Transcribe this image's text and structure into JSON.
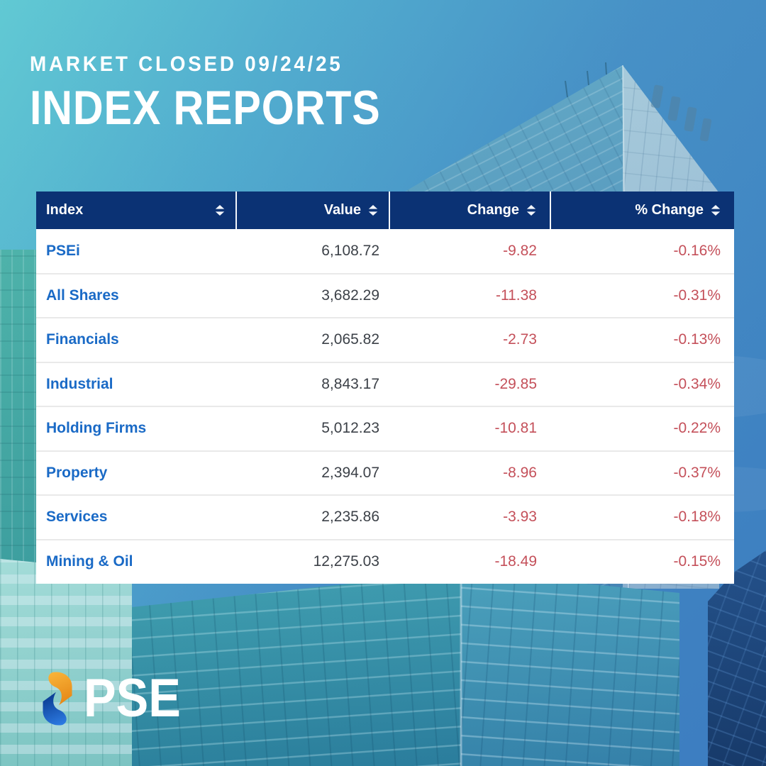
{
  "poster": {
    "status_line": "MARKET CLOSED 09/24/25",
    "title": "INDEX REPORTS"
  },
  "logo": {
    "text": "PSE",
    "mark_top_color": "#F3A52C",
    "mark_bottom_color": "#1D63C8"
  },
  "table": {
    "columns": [
      {
        "label": "Index",
        "sortable": true,
        "align": "left"
      },
      {
        "label": "Value",
        "sortable": true,
        "align": "right"
      },
      {
        "label": "Change",
        "sortable": true,
        "align": "right"
      },
      {
        "label": "% Change",
        "sortable": true,
        "align": "right"
      }
    ],
    "rows": [
      {
        "index": "PSEi",
        "value": "6,108.72",
        "change": "-9.82",
        "pct_change": "-0.16%"
      },
      {
        "index": "All Shares",
        "value": "3,682.29",
        "change": "-11.38",
        "pct_change": "-0.31%"
      },
      {
        "index": "Financials",
        "value": "2,065.82",
        "change": "-2.73",
        "pct_change": "-0.13%"
      },
      {
        "index": "Industrial",
        "value": "8,843.17",
        "change": "-29.85",
        "pct_change": "-0.34%"
      },
      {
        "index": "Holding Firms",
        "value": "5,012.23",
        "change": "-10.81",
        "pct_change": "-0.22%"
      },
      {
        "index": "Property",
        "value": "2,394.07",
        "change": "-8.96",
        "pct_change": "-0.37%"
      },
      {
        "index": "Services",
        "value": "2,235.86",
        "change": "-3.93",
        "pct_change": "-0.18%"
      },
      {
        "index": "Mining & Oil",
        "value": "12,275.03",
        "change": "-18.49",
        "pct_change": "-0.15%"
      }
    ]
  },
  "chart_data": {
    "type": "table",
    "title": "INDEX REPORTS",
    "subtitle": "MARKET CLOSED 09/24/25",
    "columns": [
      "Index",
      "Value",
      "Change",
      "% Change"
    ],
    "rows": [
      [
        "PSEi",
        6108.72,
        -9.82,
        -0.16
      ],
      [
        "All Shares",
        3682.29,
        -11.38,
        -0.31
      ],
      [
        "Financials",
        2065.82,
        -2.73,
        -0.13
      ],
      [
        "Industrial",
        8843.17,
        -29.85,
        -0.34
      ],
      [
        "Holding Firms",
        5012.23,
        -10.81,
        -0.22
      ],
      [
        "Property",
        2394.07,
        -8.96,
        -0.37
      ],
      [
        "Services",
        2235.86,
        -3.93,
        -0.18
      ],
      [
        "Mining & Oil",
        12275.03,
        -18.49,
        -0.15
      ]
    ],
    "notes": "All changes negative (market down); % Change values are percentages"
  },
  "icons": {
    "sort": "sort-arrows (solid triangle up + triangle down)"
  },
  "colors": {
    "header_bg": "#0b3274",
    "index_link_blue": "#1a6ac6",
    "value_text": "#3c4148",
    "negative_red": "#c4505a",
    "row_separator": "#e9e9e9",
    "title_text": "#ffffff",
    "logo_orange": "#F3A52C",
    "logo_blue": "#1D63C8"
  }
}
